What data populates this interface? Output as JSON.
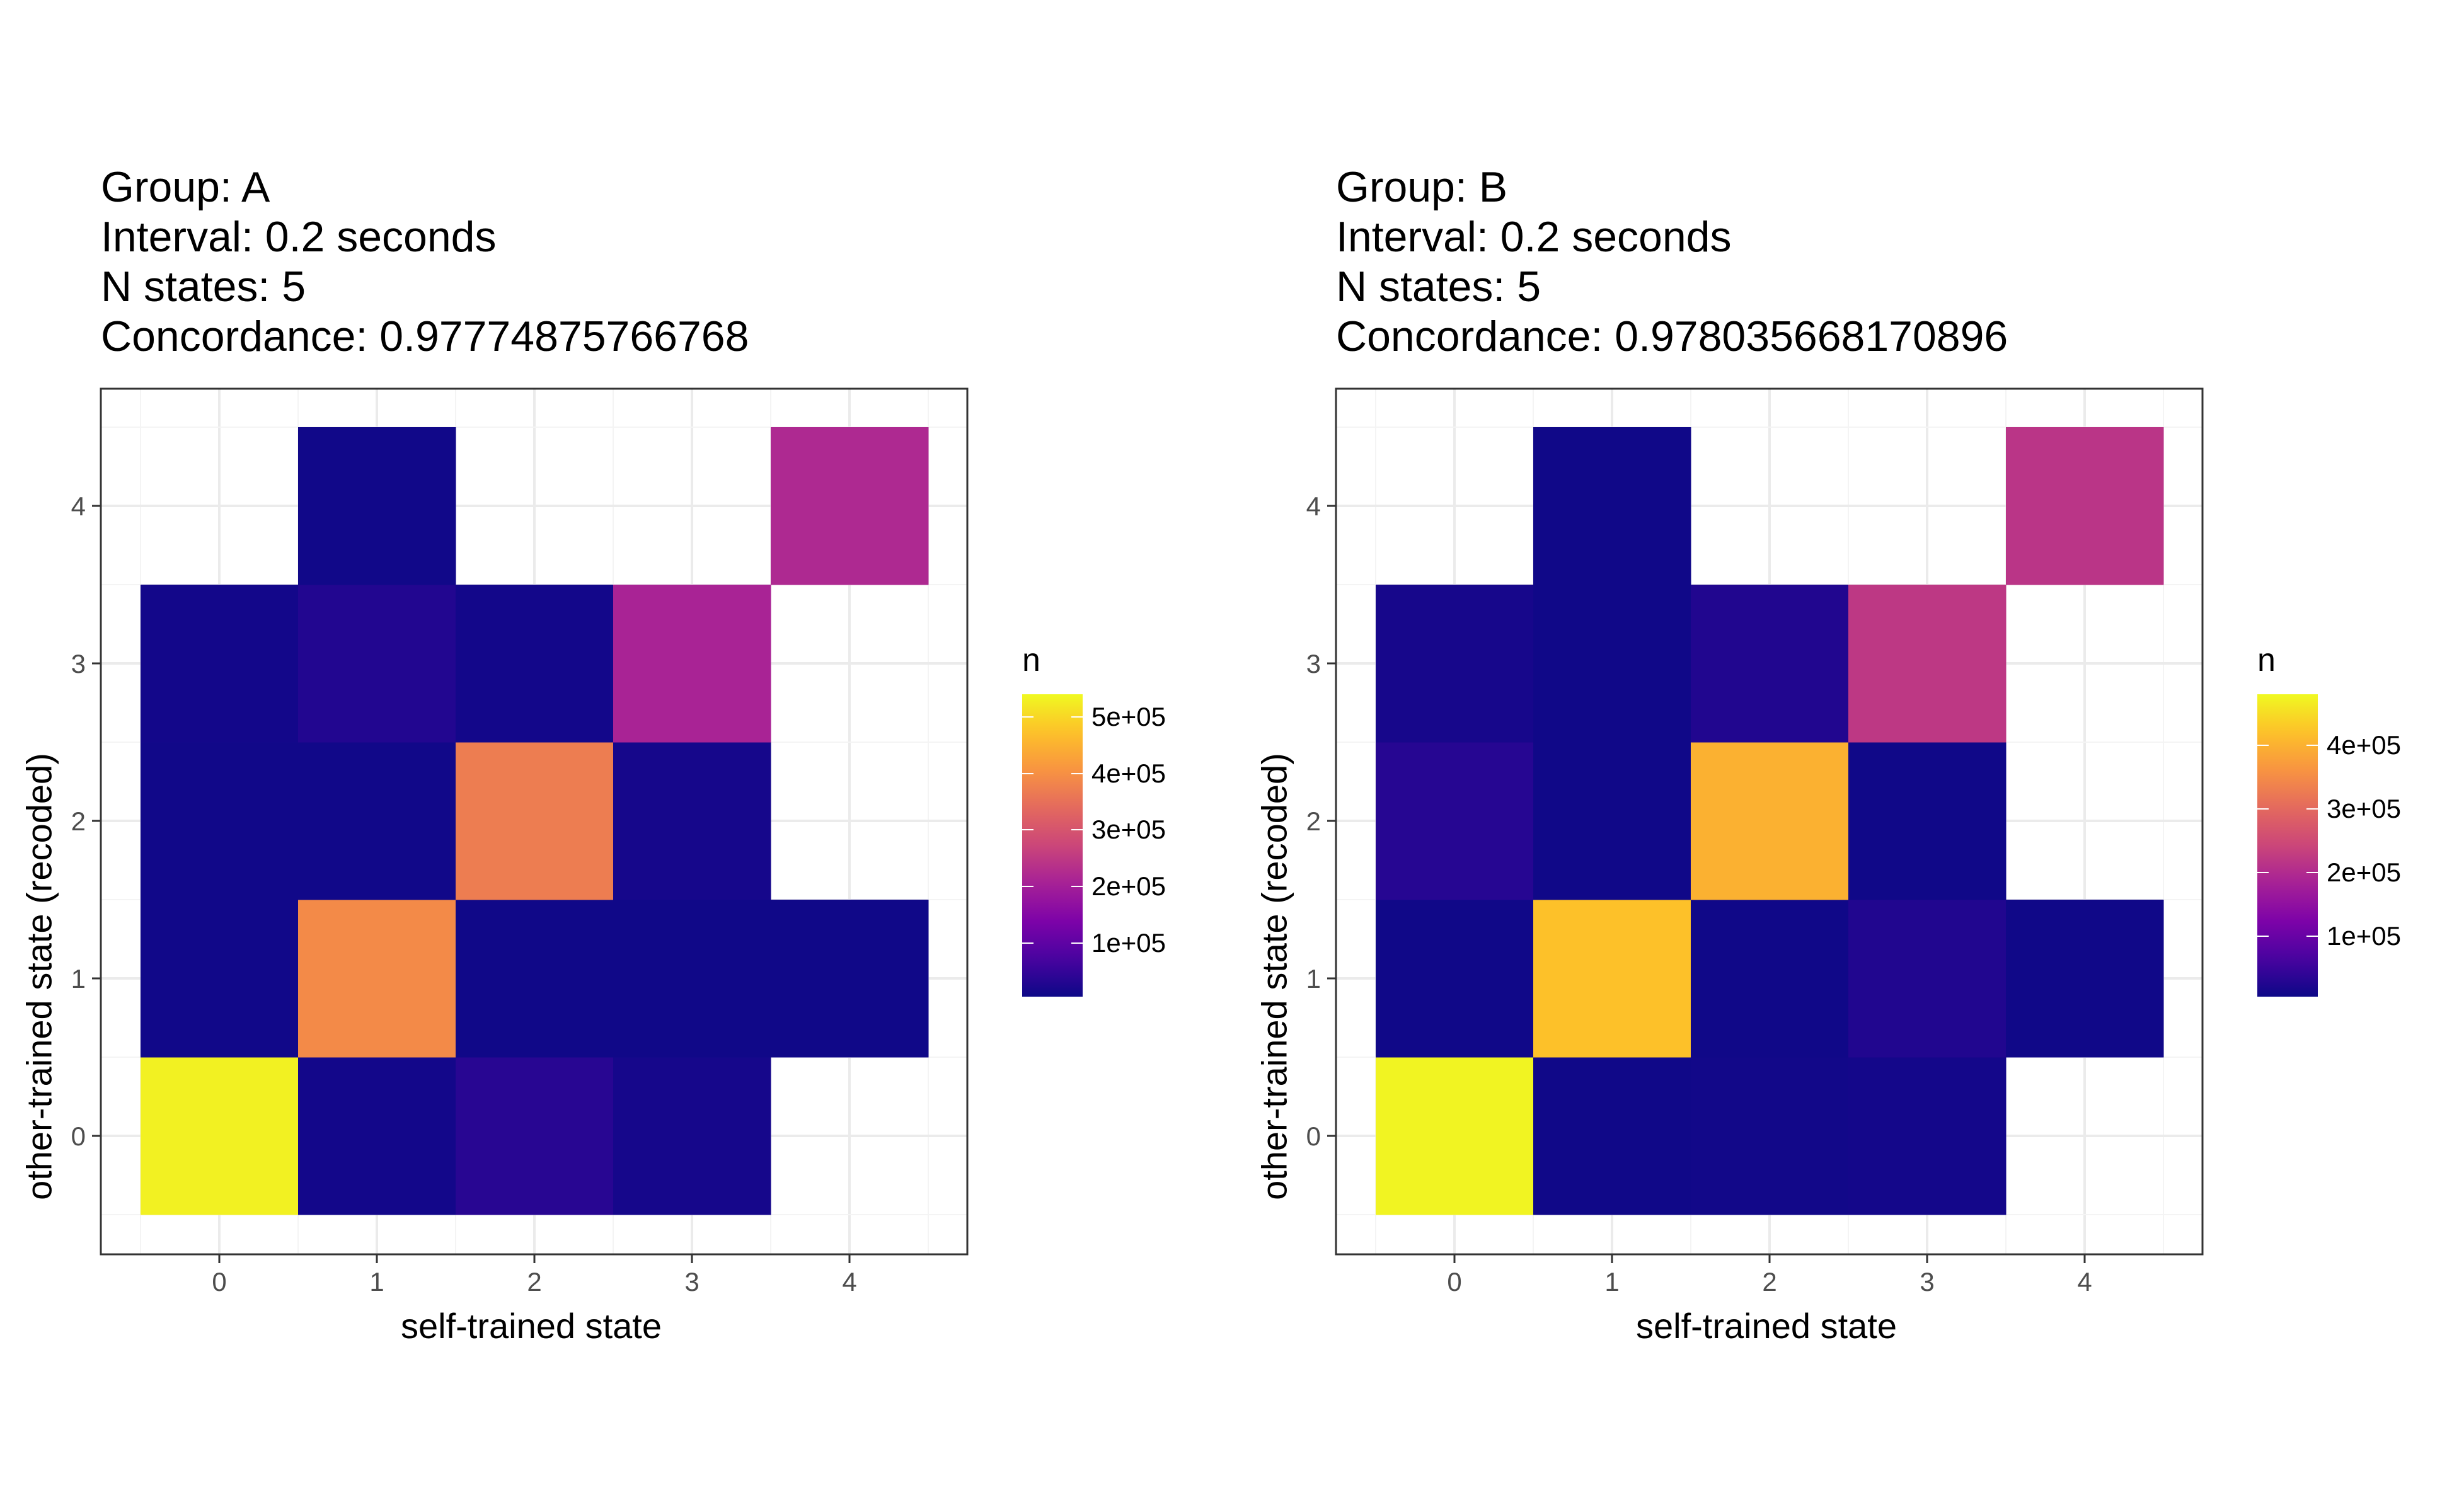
{
  "chart_data": [
    {
      "type": "heatmap",
      "title_lines": [
        "Group: A",
        "Interval: 0.2 seconds",
        "N states: 5",
        "Concordance: 0.97774875766768"
      ],
      "xlabel": "self-trained state",
      "ylabel": "other-trained state (recoded)",
      "x_ticks": [
        "0",
        "1",
        "2",
        "3",
        "4"
      ],
      "y_ticks": [
        "0",
        "1",
        "2",
        "3",
        "4"
      ],
      "legend_title": "n",
      "legend_ticks": [
        "1e+05",
        "2e+05",
        "3e+05",
        "4e+05",
        "5e+05"
      ],
      "color_scale": "plasma",
      "color_range": [
        5000,
        540000
      ],
      "cells": [
        {
          "x": 0,
          "y": 0,
          "value": 530000
        },
        {
          "x": 1,
          "y": 0,
          "value": 12000
        },
        {
          "x": 2,
          "y": 0,
          "value": 35000
        },
        {
          "x": 3,
          "y": 0,
          "value": 15000
        },
        {
          "x": 0,
          "y": 1,
          "value": 10000
        },
        {
          "x": 1,
          "y": 1,
          "value": 390000
        },
        {
          "x": 2,
          "y": 1,
          "value": 8000
        },
        {
          "x": 3,
          "y": 1,
          "value": 8000
        },
        {
          "x": 4,
          "y": 1,
          "value": 8000
        },
        {
          "x": 0,
          "y": 2,
          "value": 10000
        },
        {
          "x": 1,
          "y": 2,
          "value": 10000
        },
        {
          "x": 2,
          "y": 2,
          "value": 370000
        },
        {
          "x": 3,
          "y": 2,
          "value": 15000
        },
        {
          "x": 0,
          "y": 3,
          "value": 12000
        },
        {
          "x": 1,
          "y": 3,
          "value": 28000
        },
        {
          "x": 2,
          "y": 3,
          "value": 12000
        },
        {
          "x": 3,
          "y": 3,
          "value": 210000
        },
        {
          "x": 1,
          "y": 4,
          "value": 10000
        },
        {
          "x": 4,
          "y": 4,
          "value": 220000
        }
      ]
    },
    {
      "type": "heatmap",
      "title_lines": [
        "Group: B",
        "Interval: 0.2 seconds",
        "N states: 5",
        "Concordance: 0.978035668170896"
      ],
      "xlabel": "self-trained state",
      "ylabel": "other-trained state (recoded)",
      "x_ticks": [
        "0",
        "1",
        "2",
        "3",
        "4"
      ],
      "y_ticks": [
        "0",
        "1",
        "2",
        "3",
        "4"
      ],
      "legend_title": "n",
      "legend_ticks": [
        "1e+05",
        "2e+05",
        "3e+05",
        "4e+05"
      ],
      "color_scale": "plasma",
      "color_range": [
        5000,
        480000
      ],
      "cells": [
        {
          "x": 0,
          "y": 0,
          "value": 475000
        },
        {
          "x": 1,
          "y": 0,
          "value": 8000
        },
        {
          "x": 2,
          "y": 0,
          "value": 10000
        },
        {
          "x": 3,
          "y": 0,
          "value": 12000
        },
        {
          "x": 0,
          "y": 1,
          "value": 8000
        },
        {
          "x": 1,
          "y": 1,
          "value": 420000
        },
        {
          "x": 2,
          "y": 1,
          "value": 8000
        },
        {
          "x": 3,
          "y": 1,
          "value": 25000
        },
        {
          "x": 4,
          "y": 1,
          "value": 8000
        },
        {
          "x": 0,
          "y": 2,
          "value": 30000
        },
        {
          "x": 1,
          "y": 2,
          "value": 8000
        },
        {
          "x": 2,
          "y": 2,
          "value": 400000
        },
        {
          "x": 3,
          "y": 2,
          "value": 8000
        },
        {
          "x": 0,
          "y": 3,
          "value": 15000
        },
        {
          "x": 1,
          "y": 3,
          "value": 8000
        },
        {
          "x": 2,
          "y": 3,
          "value": 25000
        },
        {
          "x": 3,
          "y": 3,
          "value": 220000
        },
        {
          "x": 1,
          "y": 4,
          "value": 8000
        },
        {
          "x": 4,
          "y": 4,
          "value": 215000
        }
      ]
    }
  ]
}
